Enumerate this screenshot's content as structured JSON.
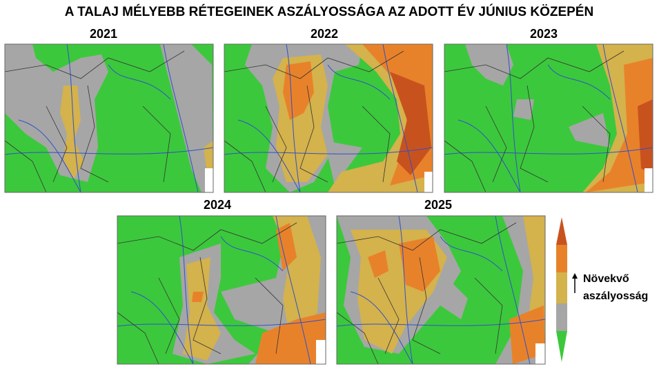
{
  "title": "A TALAJ MÉLYEBB RÉTEGEINEK ASZÁLYOSSÁGA AZ ADOTT ÉV JÚNIUS KÖZEPÉN",
  "panels": [
    {
      "year": "2021"
    },
    {
      "year": "2022"
    },
    {
      "year": "2023"
    },
    {
      "year": "2024"
    },
    {
      "year": "2025"
    }
  ],
  "legend": {
    "label_lines": [
      "Növekvő",
      "aszályosság"
    ]
  }
}
